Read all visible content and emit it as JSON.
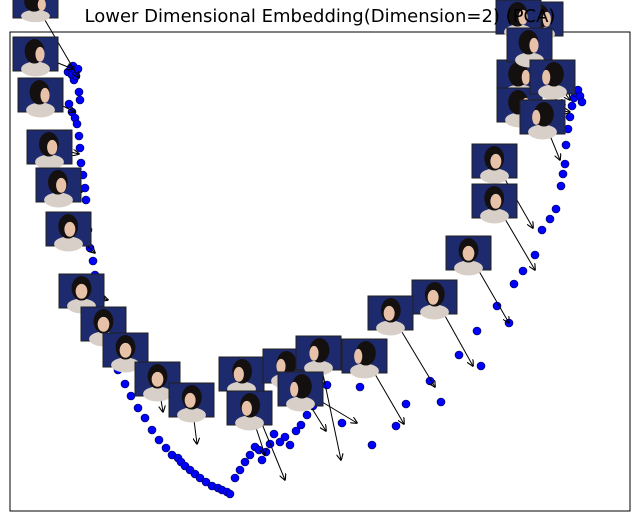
{
  "chart_data": {
    "type": "scatter",
    "title": "Lower Dimensional Embedding(Dimension=2) (PCA)",
    "xlabel": "",
    "ylabel": "",
    "grid": false,
    "axis_ticks": false,
    "marker_color": "#0000ff",
    "marker_edge_color": "#000033",
    "thumbnail_background": "#1e2a6e",
    "thumbnail_border": "#202020",
    "series": [
      {
        "x": [
          68,
          71,
          72,
          73,
          74,
          75,
          76,
          78,
          79,
          80,
          69,
          72,
          75,
          77,
          79,
          80,
          81,
          83,
          85,
          86,
          85,
          88,
          90,
          93,
          95,
          98,
          101,
          104,
          108,
          112,
          118,
          125,
          131,
          138,
          145,
          152,
          159,
          166,
          172,
          178,
          181,
          185,
          190,
          195,
          200,
          206,
          212,
          218,
          222,
          227,
          230,
          235,
          240,
          245,
          250,
          255,
          259,
          262,
          266,
          270,
          274,
          280,
          285,
          290,
          296,
          301,
          307,
          313,
          319,
          327,
          342,
          360,
          372,
          396,
          406,
          430,
          441,
          459,
          477,
          481,
          497,
          509,
          514,
          523,
          535,
          542,
          550,
          556,
          561,
          563,
          565,
          566,
          568,
          570,
          572,
          574,
          576,
          578,
          580,
          582
        ],
        "y": [
          72,
          68,
          75,
          66,
          80,
          70,
          76,
          69,
          92,
          100,
          104,
          112,
          118,
          124,
          136,
          148,
          163,
          175,
          188,
          200,
          216,
          230,
          248,
          261,
          275,
          285,
          298,
          318,
          338,
          356,
          370,
          384,
          396,
          408,
          418,
          430,
          440,
          448,
          455,
          458,
          462,
          466,
          470,
          474,
          478,
          482,
          486,
          488,
          490,
          492,
          494,
          478,
          470,
          462,
          455,
          447,
          450,
          460,
          452,
          444,
          434,
          442,
          437,
          445,
          431,
          425,
          415,
          406,
          395,
          385,
          423,
          387,
          445,
          426,
          404,
          381,
          402,
          355,
          331,
          366,
          306,
          323,
          284,
          271,
          255,
          230,
          219,
          209,
          186,
          174,
          164,
          145,
          129,
          117,
          106,
          98,
          93,
          90,
          96,
          102
        ]
      }
    ],
    "thumbnails": [
      {
        "image": "face",
        "view": "right-profile"
      },
      {
        "image": "face",
        "view": "right-profile"
      },
      {
        "image": "face",
        "view": "right-profile"
      },
      {
        "image": "face",
        "view": "right-profile"
      },
      {
        "image": "face",
        "view": "three-quarter-right"
      },
      {
        "image": "face",
        "view": "three-quarter-right"
      },
      {
        "image": "face",
        "view": "three-quarter-right"
      },
      {
        "image": "face",
        "view": "three-quarter-right"
      },
      {
        "image": "face",
        "view": "half-right"
      },
      {
        "image": "face",
        "view": "half-right"
      },
      {
        "image": "face",
        "view": "slight-right"
      },
      {
        "image": "face",
        "view": "slight-right"
      },
      {
        "image": "face",
        "view": "slight-right"
      },
      {
        "image": "face",
        "view": "frontal"
      },
      {
        "image": "face",
        "view": "frontal"
      },
      {
        "image": "face",
        "view": "frontal"
      },
      {
        "image": "face",
        "view": "frontal"
      },
      {
        "image": "face",
        "view": "frontal"
      },
      {
        "image": "face",
        "view": "slight-left"
      },
      {
        "image": "face",
        "view": "slight-left"
      },
      {
        "image": "face",
        "view": "slight-left"
      },
      {
        "image": "face",
        "view": "half-left"
      },
      {
        "image": "face",
        "view": "half-left"
      },
      {
        "image": "face",
        "view": "three-quarter-left"
      },
      {
        "image": "face",
        "view": "three-quarter-left"
      },
      {
        "image": "face",
        "view": "left-profile"
      },
      {
        "image": "face",
        "view": "left-profile"
      },
      {
        "image": "face",
        "view": "left-profile"
      },
      {
        "image": "face",
        "view": "left-profile"
      }
    ]
  }
}
